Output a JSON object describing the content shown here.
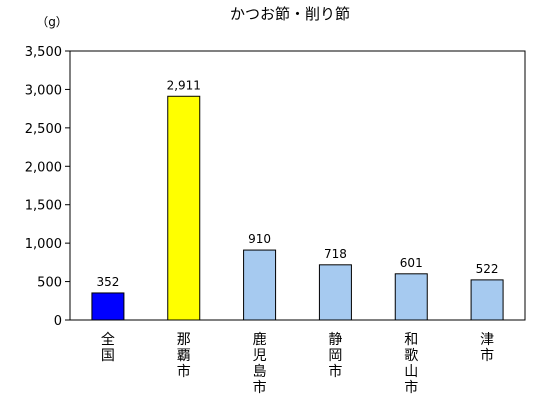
{
  "chart_data": {
    "type": "bar",
    "title": "かつお節・削り節",
    "unit_label": "（g）",
    "categories": [
      "全国",
      "那覇市",
      "鹿児島市",
      "静岡市",
      "和歌山市",
      "津市"
    ],
    "values": [
      352,
      2911,
      910,
      718,
      601,
      522
    ],
    "value_labels": [
      "352",
      "2,911",
      "910",
      "718",
      "601",
      "522"
    ],
    "bar_colors": [
      "#0000ff",
      "#ffff00",
      "#a6caf0",
      "#a6caf0",
      "#a6caf0",
      "#a6caf0"
    ],
    "ylim": [
      0,
      3500
    ],
    "yticks": [
      0,
      500,
      1000,
      1500,
      2000,
      2500,
      3000,
      3500
    ],
    "ytick_labels": [
      "0",
      "500",
      "1,000",
      "1,500",
      "2,000",
      "2,500",
      "3,000",
      "3,500"
    ],
    "grid": false,
    "legend": "none"
  }
}
